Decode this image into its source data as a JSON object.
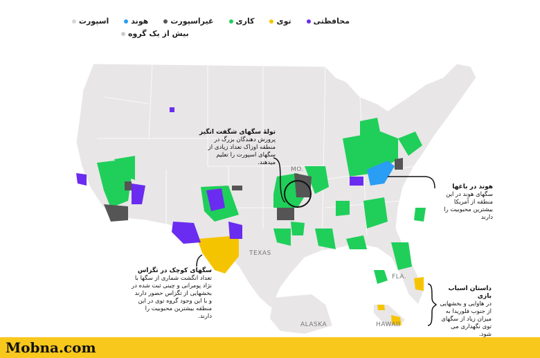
{
  "legend": {
    "items": [
      {
        "label": "محافظتی",
        "color": "#6a2cf0"
      },
      {
        "label": "توی",
        "color": "#f5c400"
      },
      {
        "label": "کاری",
        "color": "#1fcf5a"
      },
      {
        "label": "غیراسپورت",
        "color": "#555555"
      },
      {
        "label": "هوند",
        "color": "#2a9df4"
      },
      {
        "label": "اسپورت",
        "color": "#d6d6d6"
      },
      {
        "label": "بیش از یک گروه",
        "color": "#cccccc"
      }
    ]
  },
  "annotations": {
    "midwest": {
      "title": "تولهٔ سگهای شگفت انگیز",
      "body": "پرورش دهندگان بزرگ در منطقه اوزاک تعداد زیادی از سگهای اسپورت را تعلیم میدهند."
    },
    "texas": {
      "title": "سگهای کوچک در تگزاس",
      "body": "تعداد انگشت شماری از سگها با نژاد پومرانی و چینی ثبت شده در بخشهایی از تگزاس حضور دارند و با این وجود گروه توی در این منطقه بیشترین محبوبیت را دارند."
    },
    "hound": {
      "title": "هوند در باغها",
      "body": "سگهای هوند در این منطقه از آمریکا بیشترین محبوبیت را دارند"
    },
    "florida": {
      "title": "داستان اسباب بازی",
      "body": "در هاوایی و بخشهایی از جنوب فلوریدا به میزان زیاد از سگهای توی نگهداری می شود."
    }
  },
  "state_labels": {
    "texas": "TEXAS",
    "mo": "MO.",
    "fla": "FLA.",
    "alaska": "ALASKA",
    "hawaii": "HAWAII"
  },
  "brand": "Mobna.com",
  "colors": {
    "land": "#e8e6e6",
    "border": "#ffffff",
    "banner": "#f8c81c"
  }
}
